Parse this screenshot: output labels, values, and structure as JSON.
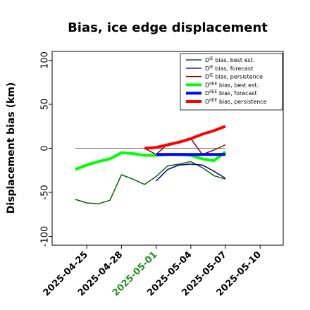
{
  "chart_data": {
    "type": "line",
    "title": "Bias, ice edge displacement",
    "xlabel": "",
    "ylabel": "Displacement bias (km)",
    "ylim": [
      -110,
      110
    ],
    "xlim": [
      "2025-04-22",
      "2025-05-12"
    ],
    "yticks": [
      100,
      50,
      0,
      -50,
      -100
    ],
    "yticks_label_rotation": -90,
    "xticks": [
      {
        "label": "2025-04-25",
        "color": "#000000"
      },
      {
        "label": "2025-04-28",
        "color": "#000000"
      },
      {
        "label": "2025-05-01",
        "color": "#228b22"
      },
      {
        "label": "2025-05-04",
        "color": "#000000"
      },
      {
        "label": "2025-05-07",
        "color": "#000000"
      },
      {
        "label": "2025-05-10",
        "color": "#000000"
      }
    ],
    "reference_line": {
      "y": 0,
      "x_start": "2025-04-24",
      "x_end": "2025-05-07",
      "color": "#808080"
    },
    "grid": false,
    "legend_position": "top-right",
    "series": [
      {
        "name": "bias, best est.",
        "sup": "IE",
        "color": "#006400",
        "width": 1.5,
        "x": [
          "2025-04-24",
          "2025-04-25",
          "2025-04-26",
          "2025-04-27",
          "2025-04-28",
          "2025-04-29",
          "2025-04-30",
          "2025-05-01",
          "2025-05-02",
          "2025-05-03",
          "2025-05-04",
          "2025-05-05",
          "2025-05-06",
          "2025-05-07"
        ],
        "y": [
          -58,
          -62,
          -63,
          -59,
          -30,
          -35,
          -41,
          -32,
          -20,
          -18,
          -15,
          -22,
          -31,
          -35
        ]
      },
      {
        "name": "bias, forecast",
        "sup": "IE",
        "color": "#00008b",
        "width": 1.5,
        "x": [
          "2025-05-01",
          "2025-05-02",
          "2025-05-03",
          "2025-05-04",
          "2025-05-05",
          "2025-05-06",
          "2025-05-07"
        ],
        "y": [
          -37,
          -24,
          -19,
          -18,
          -19,
          -26,
          -34
        ]
      },
      {
        "name": "bias, persistence",
        "sup": "IE",
        "color": "#8b0000",
        "width": 1.5,
        "x": [
          "2025-04-30",
          "2025-05-01",
          "2025-05-02",
          "2025-05-03",
          "2025-05-04",
          "2025-05-05",
          "2025-05-06",
          "2025-05-07"
        ],
        "y": [
          0,
          -7,
          5,
          8,
          11,
          -7,
          -2,
          4
        ]
      },
      {
        "name": "bias, best est.",
        "sup": "IIEE",
        "color": "#00ff00",
        "width": 4,
        "x": [
          "2025-04-24",
          "2025-04-25",
          "2025-04-26",
          "2025-04-27",
          "2025-04-28",
          "2025-04-29",
          "2025-04-30",
          "2025-05-01",
          "2025-05-02",
          "2025-05-03",
          "2025-05-04",
          "2025-05-05",
          "2025-05-06",
          "2025-05-07"
        ],
        "y": [
          -24,
          -19,
          -15,
          -12,
          -5,
          -6,
          -8,
          -8,
          -7,
          -7,
          -8,
          -12,
          -14,
          -4
        ]
      },
      {
        "name": "bias, forecast",
        "sup": "IIEE",
        "color": "#0000ff",
        "width": 4,
        "x": [
          "2025-05-01",
          "2025-05-02",
          "2025-05-03",
          "2025-05-04",
          "2025-05-05",
          "2025-05-06",
          "2025-05-07"
        ],
        "y": [
          -7,
          -7,
          -7,
          -7,
          -7,
          -7,
          -7
        ]
      },
      {
        "name": "bias, persistence",
        "sup": "IIEE",
        "color": "#ff0000",
        "width": 4,
        "x": [
          "2025-04-30",
          "2025-05-01",
          "2025-05-02",
          "2025-05-03",
          "2025-05-04",
          "2025-05-05",
          "2025-05-06",
          "2025-05-07"
        ],
        "y": [
          0,
          1,
          4,
          7,
          11,
          16,
          20,
          25
        ]
      }
    ]
  }
}
